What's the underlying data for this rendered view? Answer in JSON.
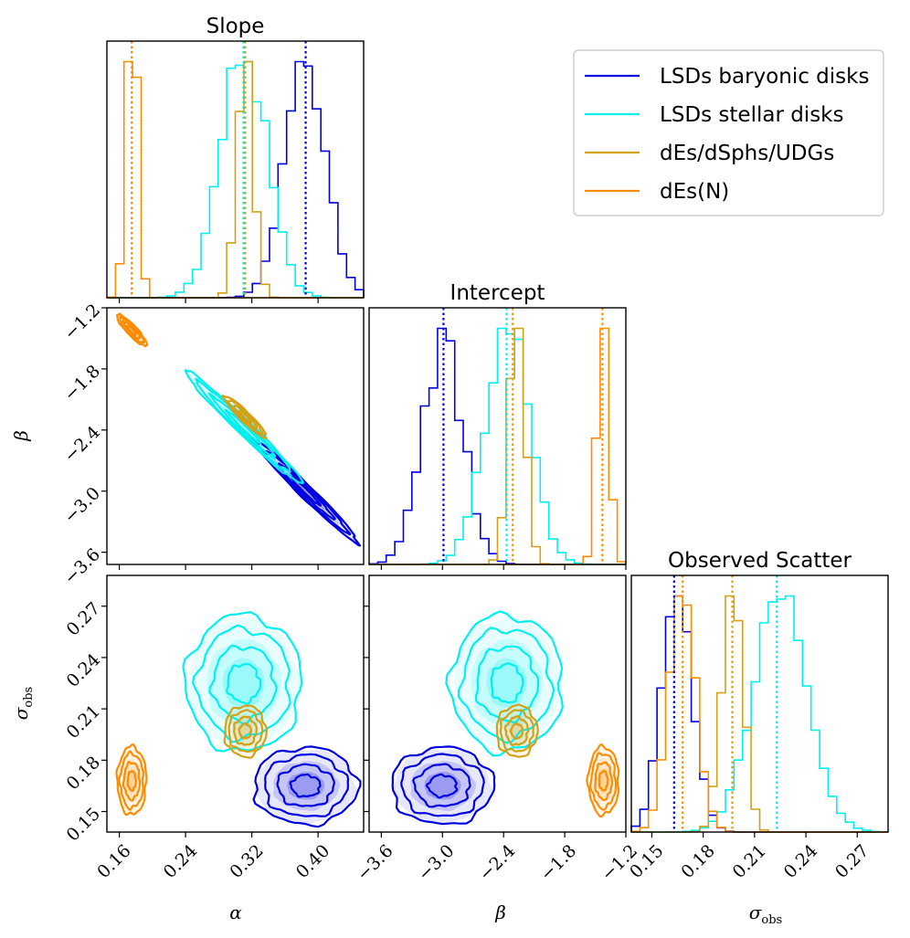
{
  "chart_data": {
    "type": "corner",
    "colors": {
      "baryonic": "#0000e0",
      "stellar": "#00f0f0",
      "dwarfs": "#d4a017",
      "nuclear": "#ff8c00"
    },
    "parameters": [
      {
        "key": "alpha",
        "label": "α",
        "title": "Slope",
        "range": [
          0.145,
          0.455
        ],
        "ticks": [
          0.16,
          0.24,
          0.32,
          0.4
        ],
        "tick_labels": [
          "0.16",
          "0.24",
          "0.32",
          "0.40"
        ]
      },
      {
        "key": "beta",
        "label": "β",
        "title": "Intercept",
        "range": [
          -3.72,
          -1.2
        ],
        "ticks": [
          -3.6,
          -3.0,
          -2.4,
          -1.8,
          -1.2
        ],
        "tick_labels": [
          "−3.6",
          "−3.0",
          "−2.4",
          "−1.8",
          "−1.2"
        ],
        "y_ticks": [
          -3.6,
          -3.0,
          -2.4,
          -1.8,
          -1.2
        ],
        "y_tick_labels": [
          "−3.6",
          "−3.0",
          "−2.4",
          "−1.8",
          "−1.2"
        ]
      },
      {
        "key": "sigma_obs",
        "label": "σ",
        "label_sub": "obs",
        "title": "Observed Scatter",
        "range": [
          0.138,
          0.288
        ],
        "ticks": [
          0.15,
          0.18,
          0.21,
          0.24,
          0.27
        ],
        "tick_labels": [
          "0.15",
          "0.18",
          "0.21",
          "0.24",
          "0.27"
        ]
      }
    ],
    "series": [
      {
        "name": "LSDs baryonic disks",
        "color_key": "baryonic",
        "alpha": {
          "mean": 0.385,
          "sd": 0.025
        },
        "beta": {
          "mean": -3.0,
          "sd": 0.2
        },
        "sigma_obs": {
          "mean": 0.165,
          "sd": 0.009
        }
      },
      {
        "name": "LSDs stellar disks",
        "color_key": "stellar",
        "alpha": {
          "mean": 0.31,
          "sd": 0.028
        },
        "beta": {
          "mean": -2.37,
          "sd": 0.22
        },
        "sigma_obs": {
          "mean": 0.225,
          "sd": 0.016
        }
      },
      {
        "name": "dEs/dSphs/UDGs",
        "color_key": "dwarfs",
        "alpha": {
          "mean": 0.312,
          "sd": 0.01
        },
        "beta": {
          "mean": -2.27,
          "sd": 0.08
        },
        "sigma_obs": {
          "mean": 0.197,
          "sd": 0.006
        }
      },
      {
        "name": "dEs(N)",
        "color_key": "nuclear",
        "alpha": {
          "mean": 0.175,
          "sd": 0.007
        },
        "beta": {
          "mean": -1.42,
          "sd": 0.06
        },
        "sigma_obs": {
          "mean": 0.168,
          "sd": 0.008
        }
      }
    ],
    "median_markers": {
      "alpha": [
        0.385,
        0.31,
        0.312,
        0.175
      ],
      "beta": [
        -2.99,
        -2.37,
        -2.31,
        -1.43
      ],
      "sigma_obs": [
        0.163,
        0.223,
        0.197,
        0.168
      ]
    },
    "legend_position": "upper-right"
  }
}
